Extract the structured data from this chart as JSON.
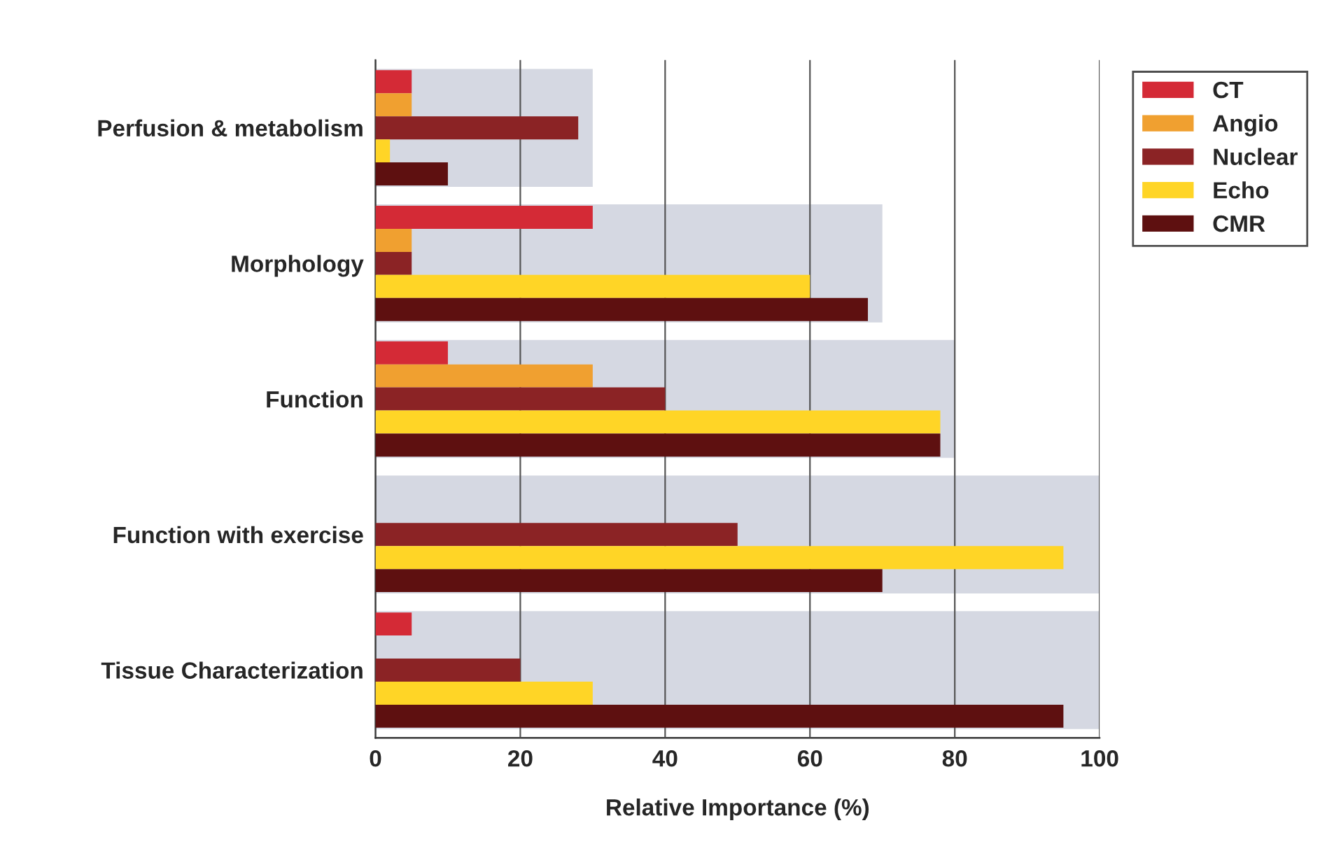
{
  "chart_data": {
    "type": "bar",
    "orientation": "horizontal",
    "xlabel": "Relative Importance (%)",
    "categories": [
      "Perfusion & metabolism",
      "Morphology",
      "Function",
      "Function with exercise",
      "Tissue Characterization"
    ],
    "series": [
      {
        "color": "#d5d8e2",
        "values": [
          30,
          70,
          80,
          100,
          100
        ]
      },
      {
        "name": "CT",
        "color": "#d42a36",
        "values": [
          5,
          30,
          10,
          null,
          5
        ]
      },
      {
        "name": "Angio",
        "color": "#f0a030",
        "values": [
          5,
          5,
          30,
          null,
          null
        ]
      },
      {
        "name": "Nuclear",
        "color": "#8b2325",
        "values": [
          28,
          5,
          40,
          50,
          20
        ]
      },
      {
        "name": "Echo",
        "color": "#ffd526",
        "values": [
          2,
          60,
          78,
          95,
          30
        ]
      },
      {
        "name": "CMR",
        "color": "#5e1010",
        "values": [
          10,
          68,
          78,
          70,
          95
        ]
      }
    ],
    "xlim": [
      0,
      100
    ],
    "xticks": [
      0,
      20,
      40,
      60,
      80,
      100
    ],
    "grid": "x",
    "legend": "top right"
  }
}
